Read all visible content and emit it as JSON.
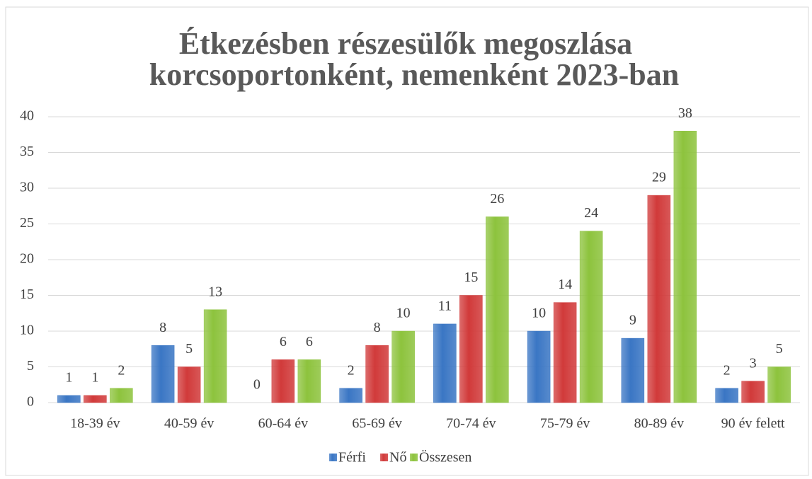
{
  "chart_data": {
    "type": "bar",
    "title": [
      "Étkezésben részesülők megoszlása",
      "korcsoportonként, nemenként 2023-ban"
    ],
    "categories": [
      "18-39 év",
      "40-59 év",
      "60-64 év",
      "65-69 év",
      "70-74 év",
      "75-79 év",
      "80-89 év",
      "90 év felett"
    ],
    "series": [
      {
        "name": "Férfi",
        "color": "#3a76c4",
        "values": [
          1,
          8,
          0,
          2,
          11,
          10,
          9,
          2
        ]
      },
      {
        "name": "Nő",
        "color": "#d13a3a",
        "values": [
          1,
          5,
          6,
          8,
          15,
          14,
          29,
          3
        ]
      },
      {
        "name": "Összesen",
        "color": "#8dc33d",
        "values": [
          2,
          13,
          6,
          10,
          26,
          24,
          38,
          5
        ]
      }
    ],
    "ylim": [
      0,
      40
    ],
    "yticks": [
      0,
      5,
      10,
      15,
      20,
      25,
      30,
      35,
      40
    ],
    "grid": true,
    "legend": "bottom"
  }
}
